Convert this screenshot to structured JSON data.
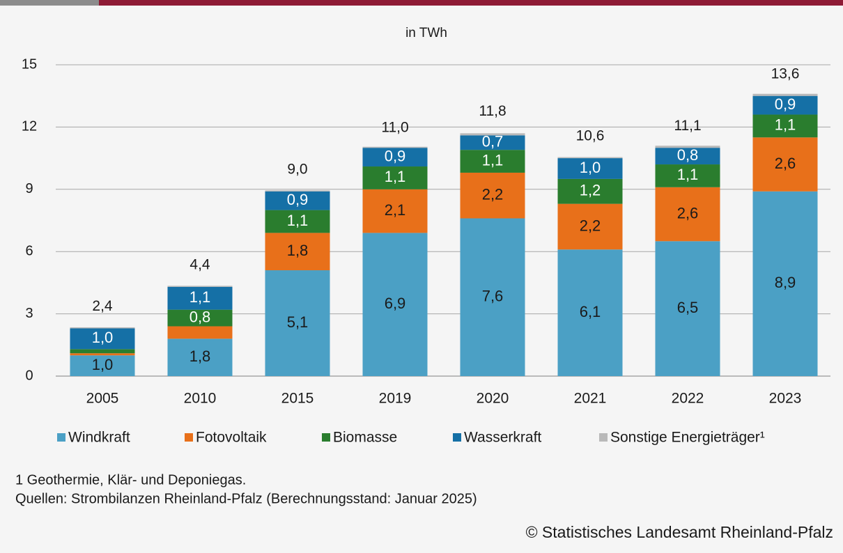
{
  "chart_data": {
    "type": "stacked_bar",
    "y_label": "in TWh",
    "categories": [
      "2005",
      "2010",
      "2015",
      "2019",
      "2020",
      "2021",
      "2022",
      "2023"
    ],
    "series": [
      {
        "name": "Windkraft",
        "color": "#4ba0c5",
        "label_color": "#1a1a1a",
        "values": [
          1.0,
          1.8,
          5.1,
          6.9,
          7.6,
          6.1,
          6.5,
          8.9
        ],
        "value_labels": [
          "1,0",
          "1,8",
          "5,1",
          "6,9",
          "7,6",
          "6,1",
          "6,5",
          "8,9"
        ]
      },
      {
        "name": "Fotovoltaik",
        "color": "#e8701a",
        "label_color": "#1a1a1a",
        "values": [
          0.1,
          0.6,
          1.8,
          2.1,
          2.2,
          2.2,
          2.6,
          2.6
        ],
        "value_labels": [
          null,
          null,
          "1,8",
          "2,1",
          "2,2",
          "2,2",
          "2,6",
          "2,6"
        ]
      },
      {
        "name": "Biomasse",
        "color": "#2a7d2e",
        "label_color": "#ffffff",
        "values": [
          0.2,
          0.8,
          1.1,
          1.1,
          1.1,
          1.2,
          1.1,
          1.1
        ],
        "value_labels": [
          null,
          "0,8",
          "1,1",
          "1,1",
          "1,1",
          "1,2",
          "1,1",
          "1,1"
        ]
      },
      {
        "name": "Wasserkraft",
        "color": "#1570a6",
        "label_color": "#ffffff",
        "values": [
          1.0,
          1.1,
          0.9,
          0.9,
          0.7,
          1.0,
          0.8,
          0.9
        ],
        "value_labels": [
          "1,0",
          "1,1",
          "0,9",
          "0,9",
          "0,7",
          "1,0",
          "0,8",
          "0,9"
        ]
      },
      {
        "name": "Sonstige Energieträger¹",
        "color": "#b9b9b9",
        "values": [
          0.05,
          0.05,
          0.05,
          0.05,
          0.1,
          0.05,
          0.1,
          0.1
        ]
      }
    ],
    "totals": [
      2.4,
      4.4,
      9.0,
      11.0,
      11.8,
      10.6,
      11.1,
      13.6
    ],
    "total_labels": [
      "2,4",
      "4,4",
      "9,0",
      "11,0",
      "11,8",
      "10,6",
      "11,1",
      "13,6"
    ],
    "ylim": [
      0,
      15
    ],
    "yticks": [
      0,
      3,
      6,
      9,
      12,
      15
    ],
    "grid": true,
    "footnote": "1 Geothermie, Klär- und Deponiegas.",
    "source": "Quellen: Strombilanzen Rheinland-Pfalz (Berechnungsstand: Januar 2025)",
    "copyright": "© Statistisches Landesamt Rheinland-Pfalz"
  }
}
